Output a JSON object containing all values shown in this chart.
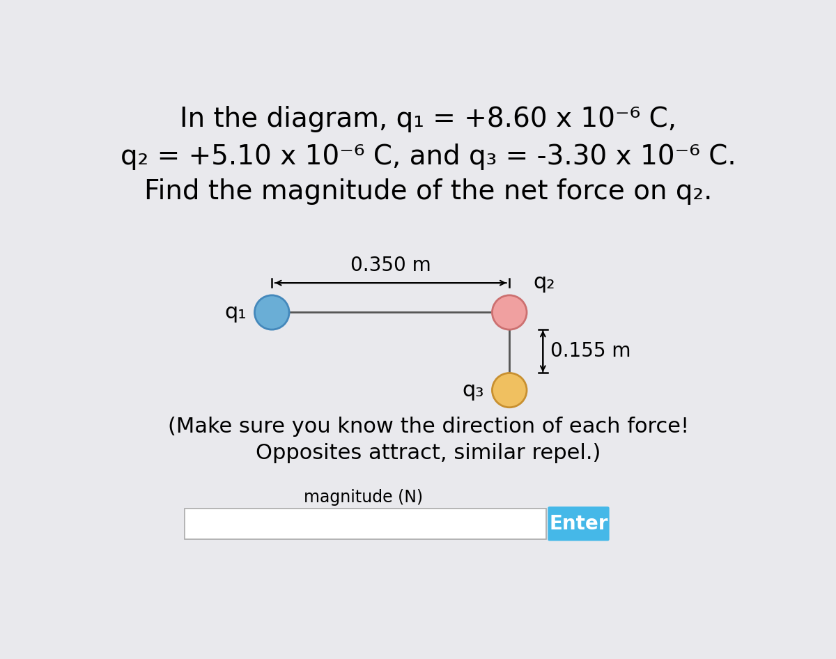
{
  "bg_color": "#e9e9ed",
  "title_line1": "In the diagram, q₁ = +8.60 x 10⁻⁶ C,",
  "title_line2": "q₂ = +5.10 x 10⁻⁶ C, and q₃ = -3.30 x 10⁻⁶ C.",
  "title_line3": "Find the magnitude of the net force on q₂.",
  "hint_line1": "(Make sure you know the direction of each force!",
  "hint_line2": "Opposites attract, similar repel.)",
  "input_label": "magnitude (N)",
  "button_text": "Enter",
  "button_color": "#45b8e8",
  "q1_color": "#6aaed6",
  "q1_edge_color": "#4488bb",
  "q2_color": "#f0a0a0",
  "q2_edge_color": "#cc7070",
  "q3_color": "#f0c060",
  "q3_edge_color": "#c89030",
  "dist_horiz": "0.350 m",
  "dist_vert": "0.155 m",
  "label_q1": "q₁",
  "label_q2": "q₂",
  "label_q3": "q₃",
  "font_size_title": 28,
  "font_size_diagram": 20,
  "font_size_hint": 22,
  "font_size_input_label": 17,
  "font_size_button": 20,
  "font_size_charge_label": 22
}
